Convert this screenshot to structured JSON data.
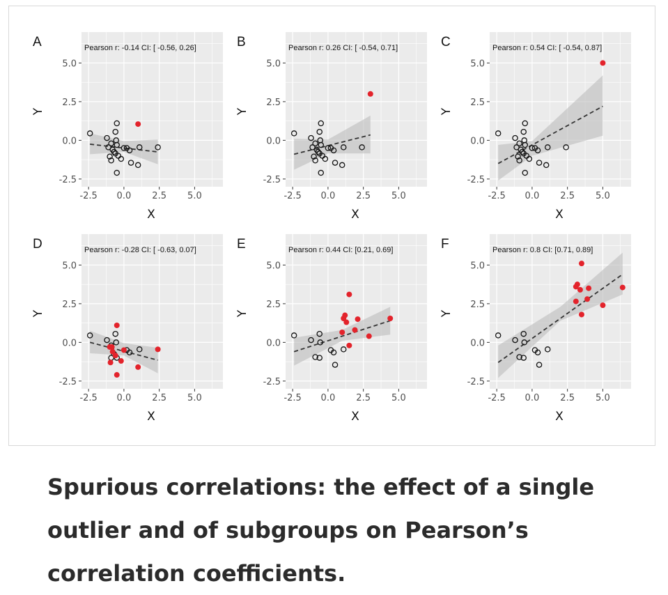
{
  "caption": "Spurious correlations: the effect of a single outlier and of subgroups on Pearson’s correlation coefficients.",
  "colors": {
    "panel_bg": "#ebebeb",
    "grid": "#ffffff",
    "highlight": "#e3232b",
    "ribbon": "#bdbdbd",
    "line": "#333333"
  },
  "chart_data": [
    {
      "panel": "A",
      "type": "scatter",
      "annotation": "Pearson r: -0.14 CI: [ -0.56, 0.26]",
      "xlabel": "X",
      "ylabel": "Y",
      "xlim": [
        -3,
        7
      ],
      "ylim": [
        -3,
        7
      ],
      "xticks": [
        "-2.5",
        "0.0",
        "2.5",
        "5.0"
      ],
      "yticks": [
        "-2.5",
        "0.0",
        "2.5",
        "5.0"
      ],
      "points": [
        [
          -2.4,
          0.45
        ],
        [
          -1.2,
          0.15
        ],
        [
          -0.9,
          -0.2
        ],
        [
          -0.8,
          -0.6
        ],
        [
          -0.6,
          -0.85
        ],
        [
          -0.5,
          -0.3
        ],
        [
          -0.55,
          0.0
        ],
        [
          -0.6,
          0.55
        ],
        [
          -0.5,
          1.1
        ],
        [
          -1.0,
          -1.05
        ],
        [
          -0.9,
          -1.3
        ],
        [
          -0.4,
          -1.0
        ],
        [
          -0.2,
          -1.2
        ],
        [
          -0.5,
          -2.1
        ],
        [
          0.0,
          -0.5
        ],
        [
          0.2,
          -0.5
        ],
        [
          0.4,
          -0.65
        ],
        [
          0.5,
          -1.45
        ],
        [
          1.0,
          -1.6
        ],
        [
          1.1,
          -0.45
        ],
        [
          2.4,
          -0.45
        ],
        [
          -0.7,
          -0.75
        ],
        [
          -1.1,
          -0.45
        ]
      ],
      "highlighted": [
        [
          1.0,
          1.05
        ]
      ],
      "fit": {
        "x": [
          -2.4,
          2.4
        ],
        "y": [
          -0.25,
          -0.75
        ]
      },
      "ci": {
        "x": [
          -2.4,
          0,
          2.4
        ],
        "lower": [
          -0.9,
          -0.75,
          -1.55
        ],
        "upper": [
          0.45,
          -0.05,
          0.05
        ]
      }
    },
    {
      "panel": "B",
      "type": "scatter",
      "annotation": "Pearson r: 0.26 CI: [ -0.54, 0.71]",
      "xlabel": "X",
      "ylabel": "Y",
      "xlim": [
        -3,
        7
      ],
      "ylim": [
        -3,
        7
      ],
      "xticks": [
        "-2.5",
        "0.0",
        "2.5",
        "5.0"
      ],
      "yticks": [
        "-2.5",
        "0.0",
        "2.5",
        "5.0"
      ],
      "points": [
        [
          -2.4,
          0.45
        ],
        [
          -1.2,
          0.15
        ],
        [
          -0.9,
          -0.2
        ],
        [
          -0.8,
          -0.6
        ],
        [
          -0.6,
          -0.85
        ],
        [
          -0.5,
          -0.3
        ],
        [
          -0.55,
          0.0
        ],
        [
          -0.6,
          0.55
        ],
        [
          -0.5,
          1.1
        ],
        [
          -1.0,
          -1.05
        ],
        [
          -0.9,
          -1.3
        ],
        [
          -0.4,
          -1.0
        ],
        [
          -0.2,
          -1.2
        ],
        [
          -0.5,
          -2.1
        ],
        [
          0.0,
          -0.5
        ],
        [
          0.2,
          -0.5
        ],
        [
          0.4,
          -0.65
        ],
        [
          0.5,
          -1.45
        ],
        [
          1.0,
          -1.6
        ],
        [
          1.1,
          -0.45
        ],
        [
          2.4,
          -0.45
        ],
        [
          -0.7,
          -0.75
        ],
        [
          -1.1,
          -0.45
        ]
      ],
      "highlighted": [
        [
          3.0,
          3.0
        ]
      ],
      "fit": {
        "x": [
          -2.4,
          3.0
        ],
        "y": [
          -0.9,
          0.35
        ]
      },
      "ci": {
        "x": [
          -2.4,
          0,
          3.0
        ],
        "lower": [
          -1.9,
          -0.85,
          -0.85
        ],
        "upper": [
          0.1,
          0.05,
          1.6
        ]
      }
    },
    {
      "panel": "C",
      "type": "scatter",
      "annotation": "Pearson r: 0.54 CI: [ -0.54, 0.87]",
      "xlabel": "X",
      "ylabel": "Y",
      "xlim": [
        -3,
        7
      ],
      "ylim": [
        -3,
        7
      ],
      "xticks": [
        "-2.5",
        "0.0",
        "2.5",
        "5.0"
      ],
      "yticks": [
        "-2.5",
        "0.0",
        "2.5",
        "5.0"
      ],
      "points": [
        [
          -2.4,
          0.45
        ],
        [
          -1.2,
          0.15
        ],
        [
          -0.9,
          -0.2
        ],
        [
          -0.8,
          -0.6
        ],
        [
          -0.6,
          -0.85
        ],
        [
          -0.5,
          -0.3
        ],
        [
          -0.55,
          0.0
        ],
        [
          -0.6,
          0.55
        ],
        [
          -0.5,
          1.1
        ],
        [
          -1.0,
          -1.05
        ],
        [
          -0.9,
          -1.3
        ],
        [
          -0.4,
          -1.0
        ],
        [
          -0.2,
          -1.2
        ],
        [
          -0.5,
          -2.1
        ],
        [
          0.0,
          -0.5
        ],
        [
          0.2,
          -0.5
        ],
        [
          0.4,
          -0.65
        ],
        [
          0.5,
          -1.45
        ],
        [
          1.0,
          -1.6
        ],
        [
          1.1,
          -0.45
        ],
        [
          2.4,
          -0.45
        ],
        [
          -0.7,
          -0.75
        ],
        [
          -1.1,
          -0.45
        ]
      ],
      "highlighted": [
        [
          5.0,
          5.0
        ]
      ],
      "fit": {
        "x": [
          -2.4,
          5.0
        ],
        "y": [
          -1.5,
          2.2
        ]
      },
      "ci": {
        "x": [
          -2.4,
          0,
          5.0
        ],
        "lower": [
          -2.6,
          -1.0,
          0.3
        ],
        "upper": [
          -0.3,
          -0.05,
          4.2
        ]
      }
    },
    {
      "panel": "D",
      "type": "scatter",
      "annotation": "Pearson r: -0.28 CI: [ -0.63, 0.07]",
      "xlabel": "X",
      "ylabel": "Y",
      "xlim": [
        -3,
        7
      ],
      "ylim": [
        -3,
        7
      ],
      "xticks": [
        "-2.5",
        "0.0",
        "2.5",
        "5.0"
      ],
      "yticks": [
        "-2.5",
        "0.0",
        "2.5",
        "5.0"
      ],
      "points": [
        [
          -2.4,
          0.45
        ],
        [
          -1.2,
          0.15
        ],
        [
          -0.9,
          -0.2
        ],
        [
          -0.55,
          0.0
        ],
        [
          -0.6,
          0.55
        ],
        [
          -0.9,
          -1.0
        ],
        [
          -0.5,
          -1.0
        ],
        [
          0.2,
          -0.5
        ],
        [
          0.4,
          -0.65
        ],
        [
          1.1,
          -0.45
        ],
        [
          -0.7,
          -0.75
        ]
      ],
      "highlighted": [
        [
          -0.5,
          1.1
        ],
        [
          -0.85,
          -0.3
        ],
        [
          -0.8,
          -0.6
        ],
        [
          -0.6,
          -0.85
        ],
        [
          -0.95,
          -1.3
        ],
        [
          -0.2,
          -1.2
        ],
        [
          -0.5,
          -2.1
        ],
        [
          0.0,
          -0.5
        ],
        [
          1.0,
          -1.6
        ],
        [
          2.4,
          -0.45
        ],
        [
          -1.0,
          -0.3
        ]
      ],
      "fit": {
        "x": [
          -2.4,
          2.4
        ],
        "y": [
          0.0,
          -1.15
        ]
      },
      "ci": {
        "x": [
          -2.4,
          0,
          2.4
        ],
        "lower": [
          -0.7,
          -0.85,
          -2.0
        ],
        "upper": [
          0.75,
          -0.05,
          -0.35
        ]
      }
    },
    {
      "panel": "E",
      "type": "scatter",
      "annotation": "Pearson r: 0.44 CI: [0.21, 0.69]",
      "xlabel": "X",
      "ylabel": "Y",
      "xlim": [
        -3,
        7
      ],
      "ylim": [
        -3,
        7
      ],
      "xticks": [
        "-2.5",
        "0.0",
        "2.5",
        "5.0"
      ],
      "yticks": [
        "-2.5",
        "0.0",
        "2.5",
        "5.0"
      ],
      "points": [
        [
          -2.4,
          0.45
        ],
        [
          -1.2,
          0.15
        ],
        [
          -0.9,
          -0.95
        ],
        [
          -0.6,
          -1.0
        ],
        [
          -0.55,
          0.0
        ],
        [
          -0.6,
          0.55
        ],
        [
          0.2,
          -0.5
        ],
        [
          0.4,
          -0.65
        ],
        [
          0.5,
          -1.45
        ],
        [
          1.1,
          -0.45
        ]
      ],
      "highlighted": [
        [
          1.5,
          3.1
        ],
        [
          1.1,
          1.55
        ],
        [
          1.3,
          1.3
        ],
        [
          1.2,
          1.75
        ],
        [
          2.1,
          1.5
        ],
        [
          4.4,
          1.55
        ],
        [
          1.0,
          0.65
        ],
        [
          1.9,
          0.8
        ],
        [
          2.9,
          0.4
        ],
        [
          1.5,
          -0.2
        ]
      ],
      "fit": {
        "x": [
          -2.4,
          4.4
        ],
        "y": [
          -0.6,
          1.4
        ]
      },
      "ci": {
        "x": [
          -2.4,
          1,
          4.4
        ],
        "lower": [
          -1.5,
          0.1,
          0.5
        ],
        "upper": [
          0.3,
          0.8,
          2.3
        ]
      }
    },
    {
      "panel": "F",
      "type": "scatter",
      "annotation": "Pearson r: 0.8 CI: [0.71, 0.89]",
      "xlabel": "X",
      "ylabel": "Y",
      "xlim": [
        -3,
        7
      ],
      "ylim": [
        -3,
        7
      ],
      "xticks": [
        "-2.5",
        "0.0",
        "2.5",
        "5.0"
      ],
      "yticks": [
        "-2.5",
        "0.0",
        "2.5",
        "5.0"
      ],
      "points": [
        [
          -2.4,
          0.45
        ],
        [
          -1.2,
          0.15
        ],
        [
          -0.9,
          -0.95
        ],
        [
          -0.6,
          -1.0
        ],
        [
          -0.55,
          0.0
        ],
        [
          -0.6,
          0.55
        ],
        [
          0.2,
          -0.5
        ],
        [
          0.4,
          -0.65
        ],
        [
          0.5,
          -1.45
        ],
        [
          1.1,
          -0.45
        ]
      ],
      "highlighted": [
        [
          3.5,
          5.1
        ],
        [
          3.1,
          3.6
        ],
        [
          3.2,
          3.75
        ],
        [
          3.4,
          3.4
        ],
        [
          4.0,
          3.5
        ],
        [
          6.4,
          3.55
        ],
        [
          3.1,
          2.65
        ],
        [
          3.9,
          2.8
        ],
        [
          5.0,
          2.4
        ],
        [
          3.5,
          1.8
        ]
      ],
      "fit": {
        "x": [
          -2.4,
          6.4
        ],
        "y": [
          -1.3,
          4.4
        ]
      },
      "ci": {
        "x": [
          -2.4,
          2,
          6.4
        ],
        "lower": [
          -2.3,
          1.4,
          3.1
        ],
        "upper": [
          -0.2,
          2.3,
          5.8
        ]
      }
    }
  ]
}
